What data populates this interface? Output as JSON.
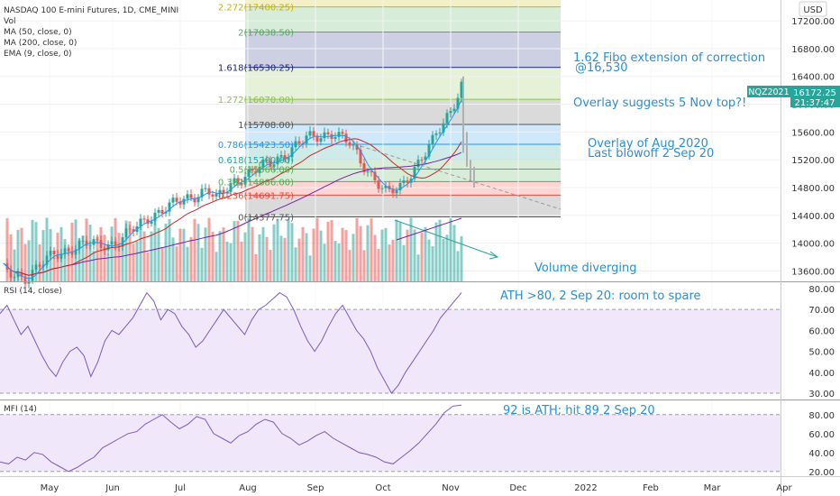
{
  "header": {
    "symbol_line": "NASDAQ 100 E-mini Futures, 1D, CME_MINI",
    "indicators": [
      "Vol",
      "MA (50, close, 0)",
      "MA (200, close, 0)",
      "EMA (9, close, 0)"
    ]
  },
  "currency_label": "USD",
  "ticker_badge": {
    "symbol": "NQZ2021",
    "price": "16172.25",
    "countdown": "21:37:47"
  },
  "price_axis": {
    "labels": [
      "17200.00",
      "16800.00",
      "16400.00",
      "16000.00",
      "15600.00",
      "15200.00",
      "14800.00",
      "14400.00",
      "14000.00",
      "13600.00"
    ],
    "values": [
      17200,
      16800,
      16400,
      16000,
      15600,
      15200,
      14800,
      14400,
      14000,
      13600
    ],
    "range": [
      13450,
      17500
    ]
  },
  "fib_levels": [
    {
      "label": "2.272(17400.25)",
      "value": 17400.25,
      "color": "#c8b400"
    },
    {
      "label": "2(17038.50)",
      "value": 17038.5,
      "color": "#4caf50"
    },
    {
      "label": "1.618(16530.25)",
      "value": 16530.25,
      "color": "#1a237e"
    },
    {
      "label": "1.272(16070.00)",
      "value": 16070,
      "color": "#8bc34a"
    },
    {
      "label": "1(15708.00)",
      "value": 15708,
      "color": "#555555"
    },
    {
      "label": "0.786(15423.50)",
      "value": 15423.5,
      "color": "#2196f3"
    },
    {
      "label": "0.618(15200.00)",
      "value": 15200,
      "color": "#26a69a"
    },
    {
      "label": "0.5(15066.00)",
      "value": 15066,
      "color": "#4caf50"
    },
    {
      "label": "0.382(14886.00)",
      "value": 14886,
      "color": "#4caf50"
    },
    {
      "label": "0.236(14691.75)",
      "value": 14691.75,
      "color": "#f44336"
    },
    {
      "label": "0(14377.75)",
      "value": 14377.75,
      "color": "#555555"
    }
  ],
  "annotations": {
    "fibo_ext": "1.62 Fibo extension of correction",
    "fibo_ext_value": "@16,530",
    "overlay_top": "Overlay suggests 5 Nov top?!",
    "overlay_aug": "Overlay of Aug 2020",
    "last_blowoff": "Last blowoff 2 Sep 20",
    "volume": "Volume diverging",
    "rsi_note": "ATH >80, 2 Sep 20: room to spare",
    "mfi_note": "92 is ATH; hit 89 2 Sep 20"
  },
  "rsi_panel": {
    "title": "RSI (14, close)",
    "axis_labels": [
      "80.00",
      "70.00",
      "60.00",
      "50.00",
      "40.00",
      "30.00"
    ],
    "axis_values": [
      80,
      70,
      60,
      50,
      40,
      30
    ],
    "band": [
      30,
      70
    ],
    "values": [
      68,
      72,
      65,
      58,
      62,
      55,
      48,
      42,
      38,
      45,
      50,
      52,
      48,
      38,
      45,
      55,
      60,
      58,
      62,
      66,
      72,
      78,
      74,
      65,
      70,
      68,
      62,
      58,
      52,
      55,
      60,
      65,
      70,
      66,
      62,
      58,
      65,
      70,
      72,
      75,
      78,
      76,
      70,
      62,
      55,
      50,
      55,
      62,
      68,
      72,
      66,
      60,
      56,
      50,
      42,
      36,
      30,
      34,
      40,
      45,
      50,
      55,
      60,
      66,
      70,
      74,
      78
    ]
  },
  "mfi_panel": {
    "title": "MFI (14)",
    "axis_labels": [
      "80.00",
      "60.00",
      "40.00",
      "20.00"
    ],
    "axis_values": [
      80,
      60,
      40,
      20
    ],
    "values": [
      30,
      28,
      35,
      32,
      40,
      38,
      30,
      25,
      20,
      24,
      30,
      35,
      45,
      50,
      55,
      60,
      62,
      70,
      75,
      80,
      72,
      65,
      70,
      78,
      75,
      60,
      55,
      50,
      58,
      62,
      70,
      75,
      72,
      60,
      55,
      48,
      52,
      58,
      62,
      55,
      50,
      45,
      40,
      38,
      35,
      30,
      28,
      35,
      42,
      50,
      60,
      70,
      82,
      89,
      90
    ]
  },
  "time_axis": [
    "May",
    "Jun",
    "Jul",
    "Aug",
    "Sep",
    "Oct",
    "Nov",
    "Dec",
    "2022",
    "Feb",
    "Mar",
    "Apr"
  ],
  "colors": {
    "up": "#26a69a",
    "down": "#ef5350",
    "ema": "#2196f3",
    "ma50": "#c62828",
    "ma200": "#7b1fa2",
    "rsi": "#7e57c2",
    "annotation": "#2a8fd3"
  }
}
